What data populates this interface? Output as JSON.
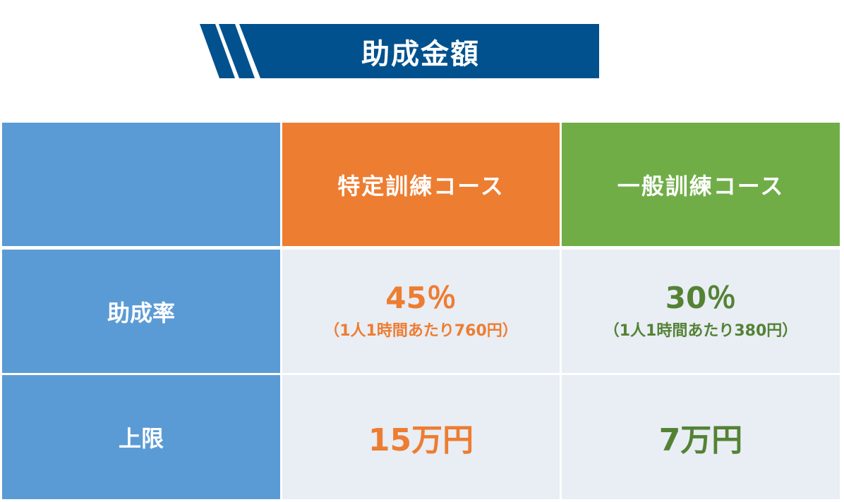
{
  "title": "助成金額",
  "colors": {
    "banner": "#00518E",
    "label_bg": "#5B9BD5",
    "specific": "#ED7D31",
    "general": "#70AD47",
    "general_text": "#548235",
    "cell_bg": "#E9EDF4"
  },
  "table": {
    "columns": [
      "",
      "特定訓練コース",
      "一般訓練コース"
    ],
    "rows": [
      {
        "label": "助成率",
        "specific": {
          "main": "45％",
          "sub": "（1人1時間あたり760円）"
        },
        "general": {
          "main": "30％",
          "sub": "（1人1時間あたり380円）"
        }
      },
      {
        "label": "上限",
        "specific": {
          "main": "15万円"
        },
        "general": {
          "main": "7万円"
        }
      }
    ]
  }
}
